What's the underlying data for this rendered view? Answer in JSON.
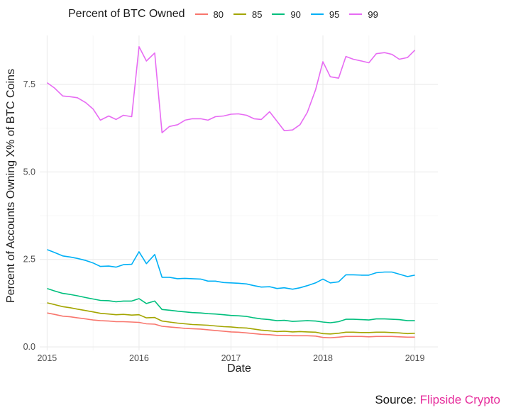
{
  "chart_data": {
    "type": "line",
    "title": "",
    "xlabel": "Date",
    "ylabel": "Percent of Accounts Owning X% of BTC Coins",
    "legend_title": "Percent of BTC Owned",
    "legend_position": "top",
    "grid": true,
    "xlim": [
      2014.92,
      2019.25
    ],
    "ylim": [
      -0.1,
      8.9
    ],
    "x_ticks": [
      2015,
      2016,
      2017,
      2018,
      2019
    ],
    "y_ticks": [
      0.0,
      2.5,
      5.0,
      7.5
    ],
    "y_tick_labels": [
      "0.0",
      "2.5",
      "5.0",
      "7.5"
    ],
    "x": [
      2015.0,
      2015.08,
      2015.17,
      2015.25,
      2015.33,
      2015.42,
      2015.5,
      2015.58,
      2015.67,
      2015.75,
      2015.83,
      2015.92,
      2016.0,
      2016.08,
      2016.17,
      2016.25,
      2016.33,
      2016.42,
      2016.5,
      2016.58,
      2016.67,
      2016.75,
      2016.83,
      2016.92,
      2017.0,
      2017.08,
      2017.17,
      2017.25,
      2017.33,
      2017.42,
      2017.5,
      2017.58,
      2017.67,
      2017.75,
      2017.83,
      2017.92,
      2018.0,
      2018.08,
      2018.17,
      2018.25,
      2018.33,
      2018.42,
      2018.5,
      2018.58,
      2018.67,
      2018.75,
      2018.83,
      2018.92,
      2019.0
    ],
    "series": [
      {
        "name": "80",
        "color": "#f8766d",
        "values": [
          0.97,
          0.93,
          0.88,
          0.86,
          0.83,
          0.8,
          0.77,
          0.75,
          0.74,
          0.72,
          0.72,
          0.71,
          0.7,
          0.66,
          0.65,
          0.59,
          0.57,
          0.55,
          0.53,
          0.52,
          0.51,
          0.49,
          0.47,
          0.45,
          0.43,
          0.42,
          0.4,
          0.38,
          0.36,
          0.35,
          0.33,
          0.33,
          0.32,
          0.32,
          0.32,
          0.31,
          0.27,
          0.26,
          0.28,
          0.3,
          0.3,
          0.3,
          0.29,
          0.3,
          0.3,
          0.3,
          0.29,
          0.28,
          0.28
        ]
      },
      {
        "name": "85",
        "color": "#a3a500",
        "values": [
          1.26,
          1.21,
          1.15,
          1.12,
          1.08,
          1.04,
          1.0,
          0.96,
          0.94,
          0.92,
          0.93,
          0.91,
          0.92,
          0.83,
          0.84,
          0.74,
          0.71,
          0.68,
          0.66,
          0.64,
          0.63,
          0.62,
          0.6,
          0.58,
          0.57,
          0.55,
          0.54,
          0.51,
          0.48,
          0.46,
          0.44,
          0.45,
          0.43,
          0.44,
          0.43,
          0.42,
          0.38,
          0.37,
          0.39,
          0.42,
          0.42,
          0.41,
          0.41,
          0.42,
          0.42,
          0.41,
          0.4,
          0.38,
          0.39
        ]
      },
      {
        "name": "90",
        "color": "#00bf7d",
        "values": [
          1.67,
          1.6,
          1.53,
          1.5,
          1.46,
          1.41,
          1.37,
          1.33,
          1.32,
          1.29,
          1.31,
          1.31,
          1.38,
          1.24,
          1.31,
          1.07,
          1.05,
          1.02,
          1.0,
          0.98,
          0.97,
          0.95,
          0.94,
          0.92,
          0.9,
          0.89,
          0.87,
          0.83,
          0.8,
          0.78,
          0.75,
          0.76,
          0.73,
          0.74,
          0.75,
          0.74,
          0.71,
          0.69,
          0.72,
          0.79,
          0.79,
          0.78,
          0.77,
          0.8,
          0.8,
          0.79,
          0.78,
          0.75,
          0.75
        ]
      },
      {
        "name": "95",
        "color": "#00b0f6",
        "values": [
          2.78,
          2.7,
          2.6,
          2.57,
          2.53,
          2.47,
          2.4,
          2.3,
          2.31,
          2.28,
          2.35,
          2.36,
          2.72,
          2.38,
          2.64,
          1.99,
          1.99,
          1.95,
          1.96,
          1.95,
          1.94,
          1.88,
          1.88,
          1.84,
          1.83,
          1.82,
          1.8,
          1.75,
          1.71,
          1.72,
          1.67,
          1.69,
          1.65,
          1.69,
          1.75,
          1.83,
          1.94,
          1.83,
          1.86,
          2.06,
          2.06,
          2.05,
          2.05,
          2.12,
          2.14,
          2.14,
          2.08,
          2.01,
          2.05
        ]
      },
      {
        "name": "99",
        "color": "#e76bf3",
        "values": [
          7.55,
          7.4,
          7.17,
          7.15,
          7.12,
          6.98,
          6.8,
          6.48,
          6.6,
          6.5,
          6.62,
          6.58,
          8.58,
          8.17,
          8.4,
          6.12,
          6.3,
          6.35,
          6.48,
          6.52,
          6.52,
          6.48,
          6.58,
          6.6,
          6.65,
          6.66,
          6.62,
          6.52,
          6.5,
          6.72,
          6.45,
          6.18,
          6.2,
          6.35,
          6.7,
          7.35,
          8.15,
          7.72,
          7.68,
          8.3,
          8.22,
          8.17,
          8.12,
          8.38,
          8.41,
          8.36,
          8.22,
          8.27,
          8.48
        ]
      }
    ]
  },
  "source": {
    "prefix": "Source: ",
    "brand": "Flipside Crypto"
  }
}
